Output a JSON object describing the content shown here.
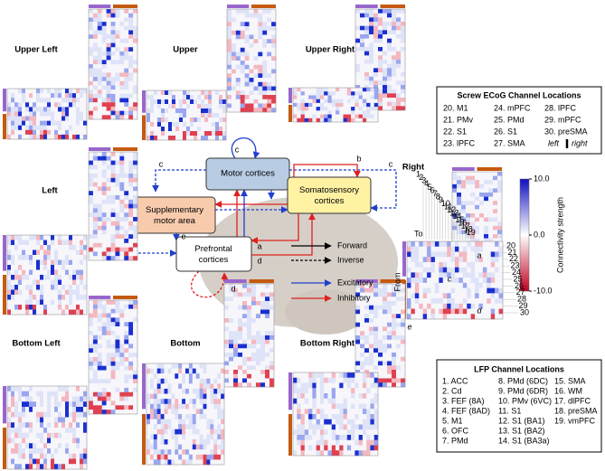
{
  "panels": [
    "Upper Left",
    "Upper",
    "Upper Right",
    "Left",
    "Right",
    "Bottom Left",
    "Bottom",
    "Bottom Right"
  ],
  "nodes": [
    "Motor cortices",
    "Supplementary motor area",
    "Somatosensory cortices",
    "Prefrontal cortices"
  ],
  "edge_labels": [
    "c",
    "c",
    "c",
    "b",
    "e",
    "a",
    "d",
    "d"
  ],
  "legend": [
    "Forward",
    "Inverse",
    "Excitatory",
    "Inhibitory"
  ],
  "right_panel": {
    "to": "To",
    "from": "From",
    "annotations": [
      "a",
      "b",
      "c",
      "d",
      "e"
    ],
    "diagonal_labels": [
      "1",
      "2",
      "3",
      "4",
      "5",
      "6",
      "7",
      "8",
      "9",
      "10",
      "11",
      "12",
      "13",
      "14",
      "15",
      "16",
      "17",
      "18",
      "19"
    ],
    "row_labels": [
      "20",
      "21",
      "22",
      "23",
      "24",
      "25",
      "26",
      "27",
      "28",
      "29",
      "30"
    ]
  },
  "colorbar": {
    "label": "Connectivity strength",
    "ticks": [
      {
        "value": 10,
        "label": "10.0"
      },
      {
        "value": 0,
        "label": "0.0"
      },
      {
        "value": -10,
        "label": "-10.0"
      }
    ],
    "range": [
      -10,
      10
    ]
  },
  "screw": {
    "title": "Screw ECoG Channel Locations",
    "items": [
      {
        "text": "20. M1",
        "color": "#7030a0"
      },
      {
        "text": "21. PMv",
        "color": "#7030a0"
      },
      {
        "text": "22. S1",
        "color": "#7030a0"
      },
      {
        "text": "23. lPFC",
        "color": "#7030a0"
      },
      {
        "text": "24. mPFC",
        "color": "#7030a0"
      },
      {
        "text": "25. PMd",
        "color": "#c55a11"
      },
      {
        "text": "26. S1",
        "color": "#c55a11"
      },
      {
        "text": "27. SMA",
        "color": "#c55a11"
      },
      {
        "text": "28. lPFC",
        "color": "#c55a11"
      },
      {
        "text": "29. mPFC",
        "color": "#c55a11"
      },
      {
        "text": "30. preSMA",
        "color": "#c55a11"
      }
    ],
    "left": "left",
    "right": "right"
  },
  "lfp": {
    "title": "LFP Channel Locations",
    "items": [
      "1. ACC",
      "2. Cd",
      "3. FEF (8A)",
      "4. FEF (8AD)",
      "5. M1",
      "6. OFC",
      "7. PMd",
      "8. PMd (6DC)",
      "9. PMd (6DR)",
      "10. PMv (6VC)",
      "11. S1",
      "12. S1 (BA1)",
      "13. S1 (BA2)",
      "14. S1 (BA3a)",
      "15. SMA",
      "16. WM",
      "17. dlPFC",
      "18. preSMA",
      "19. vmPFC"
    ]
  }
}
